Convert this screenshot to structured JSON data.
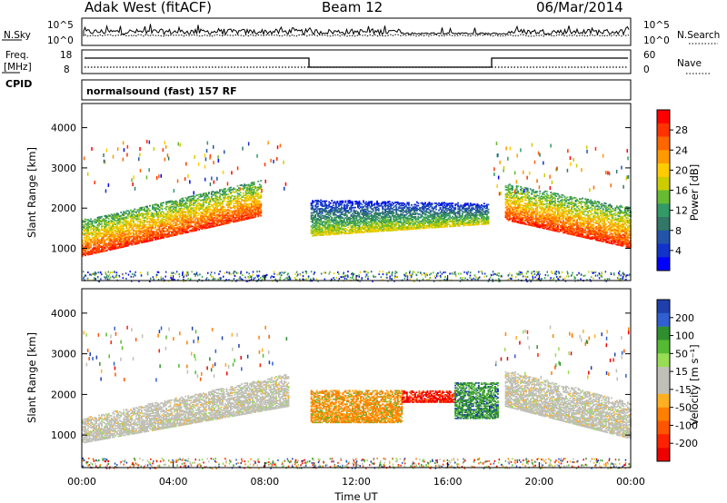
{
  "header": {
    "station": "Adak West (fitACF)",
    "beam": "Beam 12",
    "date": "06/Mar/2014"
  },
  "status_panels": {
    "nsky_label": "N.Sky",
    "nsky_ticks": [
      "10^5",
      "10^0"
    ],
    "nsearch_label": "N.Search",
    "nsearch_ticks": [
      "10^5",
      "10^0"
    ],
    "freq_label_1": "Freq.",
    "freq_label_2": "[MHz]",
    "freq_ticks": [
      "18",
      "8"
    ],
    "nave_label": "Nave",
    "nave_ticks": [
      "60",
      "0"
    ],
    "cpid_label": "CPID",
    "cpid_text": "normalsound (fast) 157 RF"
  },
  "colorbars": {
    "power": {
      "label": "Power [dB]",
      "ticks": [
        "28",
        "24",
        "20",
        "16",
        "12",
        "8",
        "4"
      ],
      "colors": [
        "#ff0000",
        "#ff3300",
        "#ff6600",
        "#ff9900",
        "#ffcc00",
        "#cccc00",
        "#66bb33",
        "#339966",
        "#337766",
        "#2255aa",
        "#1133cc",
        "#0000ff"
      ]
    },
    "velocity": {
      "label": "Velocity [m s⁻¹]",
      "ticks": [
        "200",
        "100",
        "50",
        "15",
        "-15",
        "-50",
        "-100",
        "-200"
      ],
      "colors": [
        "#1f3faa",
        "#2f5fd0",
        "#2f8f2f",
        "#55bb33",
        "#99dd55",
        "#c0c0b8",
        "#c0c0b8",
        "#ffb020",
        "#ff8000",
        "#ff5500",
        "#ff2200",
        "#ee0000"
      ]
    }
  },
  "chart_data": [
    {
      "type": "heatmap",
      "name": "power",
      "ylabel": "Slant Range [km]",
      "yticks": [
        1000,
        2000,
        3000,
        4000
      ],
      "ylim": [
        200,
        4600
      ],
      "xlim": [
        0,
        24
      ],
      "echo_bands": [
        {
          "t0": 0.0,
          "t1": 7.8,
          "r0_start": 800,
          "r0_end": 1800,
          "r1_start": 1700,
          "r1_end": 2700,
          "value": "high"
        },
        {
          "t0": 10.0,
          "t1": 17.8,
          "r0_start": 1300,
          "r0_end": 1600,
          "r1_start": 2200,
          "r1_end": 2100,
          "value": "medium"
        },
        {
          "t0": 18.5,
          "t1": 24.0,
          "r0_start": 1700,
          "r0_end": 1000,
          "r1_start": 2600,
          "r1_end": 2000,
          "value": "high"
        }
      ]
    },
    {
      "type": "heatmap",
      "name": "velocity",
      "ylabel": "Slant Range [km]",
      "yticks": [
        1000,
        2000,
        3000,
        4000
      ],
      "ylim": [
        200,
        4600
      ],
      "xlim": [
        0,
        24
      ],
      "xlabel": "Time UT",
      "xticks": [
        "00:00",
        "04:00",
        "08:00",
        "12:00",
        "16:00",
        "20:00",
        "00:00"
      ],
      "echo_bands": [
        {
          "t0": 0.0,
          "t1": 9.0,
          "r0_start": 800,
          "r0_end": 1700,
          "r1_start": 1400,
          "r1_end": 2500,
          "value": "near-zero"
        },
        {
          "t0": 10.0,
          "t1": 14.0,
          "r0_start": 1300,
          "r0_end": 1300,
          "r1_start": 2100,
          "r1_end": 2100,
          "value": "negative"
        },
        {
          "t0": 14.0,
          "t1": 16.3,
          "r0_start": 1800,
          "r0_end": 1800,
          "r1_start": 2100,
          "r1_end": 2100,
          "value": "strong-negative"
        },
        {
          "t0": 16.3,
          "t1": 18.2,
          "r0_start": 1400,
          "r0_end": 1400,
          "r1_start": 2300,
          "r1_end": 2300,
          "value": "positive"
        },
        {
          "t0": 18.5,
          "t1": 24.0,
          "r0_start": 1700,
          "r0_end": 900,
          "r1_start": 2600,
          "r1_end": 1800,
          "value": "near-zero"
        }
      ]
    }
  ]
}
